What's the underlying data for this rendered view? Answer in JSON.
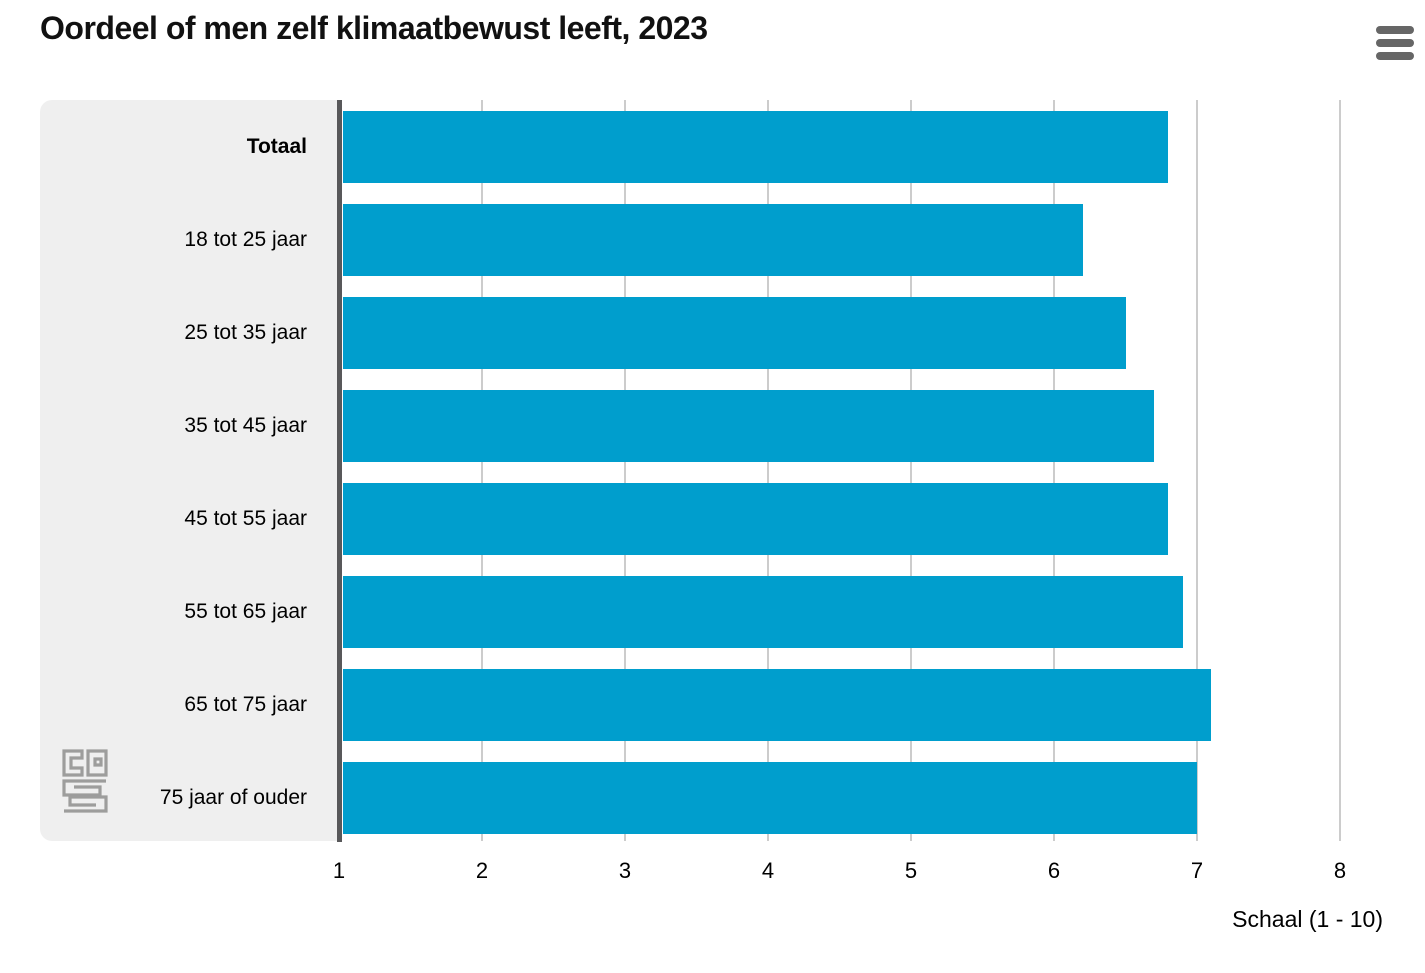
{
  "chart_data": {
    "type": "bar",
    "orientation": "horizontal",
    "title": "Oordeel of men zelf klimaatbewust leeft, 2023",
    "categories": [
      "Totaal",
      "18 tot 25 jaar",
      "25 tot 35 jaar",
      "35 tot 45 jaar",
      "45 tot 55 jaar",
      "55 tot 65 jaar",
      "65 tot 75 jaar",
      "75 jaar of ouder"
    ],
    "values": [
      6.8,
      6.2,
      6.5,
      6.7,
      6.8,
      6.9,
      7.1,
      7.0
    ],
    "bold_categories": [
      "Totaal"
    ],
    "xlabel": "Schaal (1 - 10)",
    "xlim": [
      1,
      8
    ],
    "x_ticks": [
      1,
      2,
      3,
      4,
      5,
      6,
      7,
      8
    ],
    "grid": true,
    "legend": "none"
  },
  "menu": {
    "icon": "hamburger-icon"
  },
  "logo": {
    "name": "cbs-logo"
  },
  "colors": {
    "bar": "#009ecd",
    "panel_background": "#efefef",
    "axis_line": "#58585a",
    "gridline": "#cccccc",
    "text": "#111111",
    "menu_icon": "#666666",
    "logo": "#9d9d9c",
    "background": "#ffffff"
  }
}
